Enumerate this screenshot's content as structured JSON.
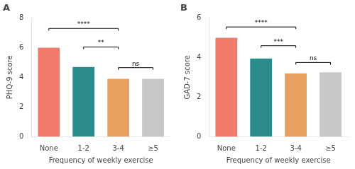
{
  "chart_data": [
    {
      "type": "bar",
      "title": "A",
      "categories": [
        "None",
        "1-2",
        "3-4",
        "≥5"
      ],
      "values": [
        6.0,
        4.7,
        3.9,
        3.9
      ],
      "colors": [
        "#F07B6B",
        "#2B8B8B",
        "#E8A060",
        "#C8C8C8"
      ],
      "xlabel": "Frequency of weekly exercise",
      "ylabel": "PHQ-9 score",
      "ylim": [
        0,
        8
      ],
      "yticks": [
        0,
        2,
        4,
        6,
        8
      ],
      "grid": false,
      "annotations": [
        {
          "x1": "None",
          "x2": "3-4",
          "y": 7.3,
          "text": "****"
        },
        {
          "x1": "1-2",
          "x2": "3-4",
          "y": 6.05,
          "text": "**"
        },
        {
          "x1": "3-4",
          "x2": "≥5",
          "y": 4.65,
          "text": "ns"
        }
      ]
    },
    {
      "type": "bar",
      "title": "B",
      "categories": [
        "None",
        "1-2",
        "3-4",
        "≥5"
      ],
      "values": [
        5.0,
        3.95,
        3.2,
        3.25
      ],
      "colors": [
        "#F07B6B",
        "#2B8B8B",
        "#E8A060",
        "#C8C8C8"
      ],
      "xlabel": "Frequency of weekly exercise",
      "ylabel": "GAD-7 score",
      "ylim": [
        0,
        6
      ],
      "yticks": [
        0,
        2,
        4,
        6
      ],
      "grid": false,
      "annotations": [
        {
          "x1": "None",
          "x2": "3-4",
          "y": 5.55,
          "text": "****"
        },
        {
          "x1": "1-2",
          "x2": "3-4",
          "y": 4.6,
          "text": "***"
        },
        {
          "x1": "3-4",
          "x2": "≥5",
          "y": 3.75,
          "text": "ns"
        }
      ]
    }
  ]
}
